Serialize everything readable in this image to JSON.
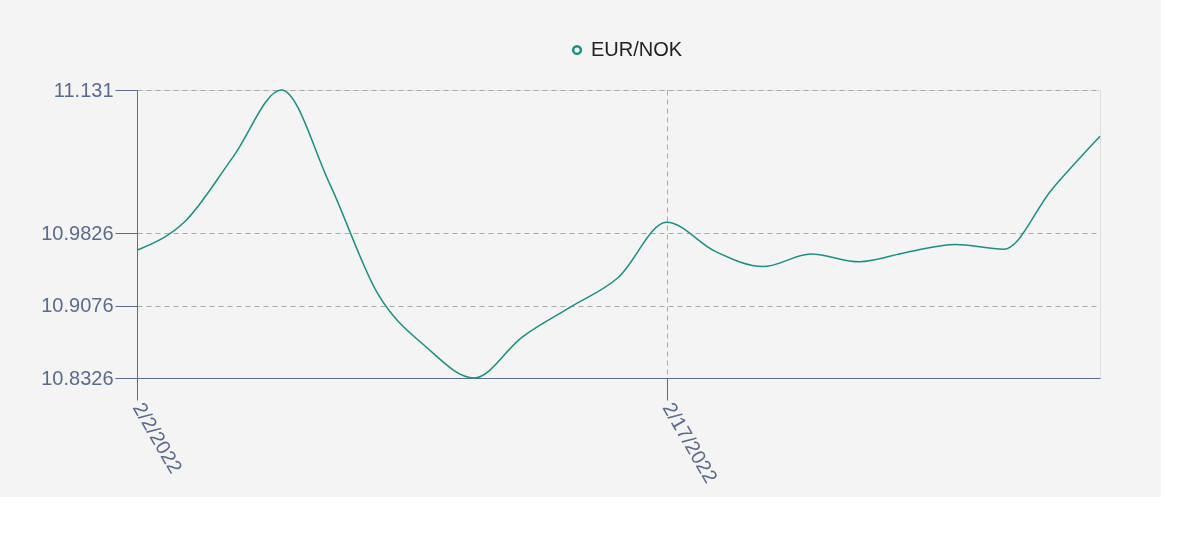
{
  "chart_data": {
    "type": "line",
    "categories": [
      "2/2/2022",
      null,
      null,
      null,
      null,
      null,
      null,
      null,
      null,
      null,
      null,
      "2/17/2022",
      null,
      null,
      null,
      null,
      null,
      null,
      null,
      null,
      null
    ],
    "series": [
      {
        "name": "EUR/NOK",
        "color": "#1a9080",
        "values": [
          10.965,
          10.995,
          11.062,
          11.131,
          11.034,
          10.92,
          10.865,
          10.8326,
          10.875,
          10.906,
          10.937,
          10.994,
          10.964,
          10.948,
          10.961,
          10.953,
          10.963,
          10.971,
          10.966,
          11.028,
          11.083
        ]
      }
    ],
    "ylim": [
      10.8326,
      11.131
    ],
    "yticks": [
      10.8326,
      10.9076,
      10.9826,
      11.131
    ],
    "grid": true,
    "legend": "top"
  }
}
